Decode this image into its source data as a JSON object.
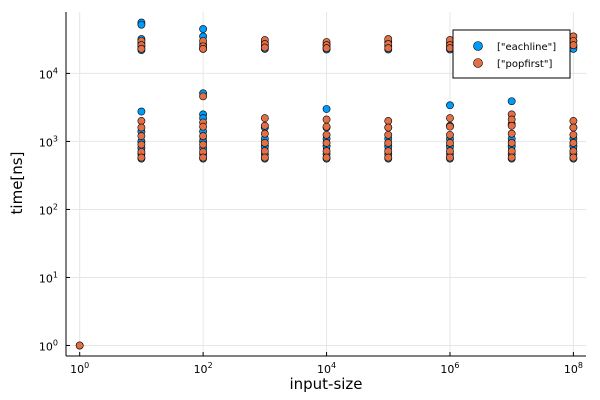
{
  "chart_data": {
    "type": "scatter",
    "title": "",
    "xlabel": "input-size",
    "ylabel": "time[ns]",
    "xscale": "log",
    "yscale": "log",
    "xlim": [
      0.6,
      160000000
    ],
    "ylim": [
      0.7,
      80000
    ],
    "grid": true,
    "legend_position": "top-right",
    "x_ticks": [
      {
        "base": "10",
        "exp": "0",
        "value": 1
      },
      {
        "base": "10",
        "exp": "2",
        "value": 100
      },
      {
        "base": "10",
        "exp": "4",
        "value": 10000
      },
      {
        "base": "10",
        "exp": "6",
        "value": 1000000
      },
      {
        "base": "10",
        "exp": "8",
        "value": 100000000
      }
    ],
    "y_ticks": [
      {
        "base": "10",
        "exp": "0",
        "value": 1
      },
      {
        "base": "10",
        "exp": "1",
        "value": 10
      },
      {
        "base": "10",
        "exp": "2",
        "value": 100
      },
      {
        "base": "10",
        "exp": "3",
        "value": 1000
      },
      {
        "base": "10",
        "exp": "4",
        "value": 10000
      }
    ],
    "series": [
      {
        "name": "[\"eachline\"]",
        "color": "#009af9",
        "points": [
          {
            "x": 1,
            "y": 1
          },
          {
            "x": 10,
            "y": 56000
          },
          {
            "x": 10,
            "y": 52000
          },
          {
            "x": 10,
            "y": 32000
          },
          {
            "x": 10,
            "y": 28000
          },
          {
            "x": 10,
            "y": 25000
          },
          {
            "x": 10,
            "y": 22000
          },
          {
            "x": 10,
            "y": 2750
          },
          {
            "x": 10,
            "y": 1400
          },
          {
            "x": 10,
            "y": 1000
          },
          {
            "x": 10,
            "y": 800
          },
          {
            "x": 10,
            "y": 650
          },
          {
            "x": 10,
            "y": 560
          },
          {
            "x": 100,
            "y": 45000
          },
          {
            "x": 100,
            "y": 35000
          },
          {
            "x": 100,
            "y": 27000
          },
          {
            "x": 100,
            "y": 23000
          },
          {
            "x": 100,
            "y": 5100
          },
          {
            "x": 100,
            "y": 2500
          },
          {
            "x": 100,
            "y": 2200
          },
          {
            "x": 100,
            "y": 1400
          },
          {
            "x": 100,
            "y": 1000
          },
          {
            "x": 100,
            "y": 800
          },
          {
            "x": 100,
            "y": 650
          },
          {
            "x": 100,
            "y": 560
          },
          {
            "x": 1000,
            "y": 28000
          },
          {
            "x": 1000,
            "y": 25000
          },
          {
            "x": 1000,
            "y": 23000
          },
          {
            "x": 1000,
            "y": 1600
          },
          {
            "x": 1000,
            "y": 1100
          },
          {
            "x": 1000,
            "y": 850
          },
          {
            "x": 1000,
            "y": 650
          },
          {
            "x": 1000,
            "y": 560
          },
          {
            "x": 10000,
            "y": 27000
          },
          {
            "x": 10000,
            "y": 24000
          },
          {
            "x": 10000,
            "y": 22500
          },
          {
            "x": 10000,
            "y": 3000
          },
          {
            "x": 10000,
            "y": 1600
          },
          {
            "x": 10000,
            "y": 1100
          },
          {
            "x": 10000,
            "y": 850
          },
          {
            "x": 10000,
            "y": 650
          },
          {
            "x": 10000,
            "y": 560
          },
          {
            "x": 100000,
            "y": 29000
          },
          {
            "x": 100000,
            "y": 25000
          },
          {
            "x": 100000,
            "y": 22500
          },
          {
            "x": 100000,
            "y": 1600
          },
          {
            "x": 100000,
            "y": 1100
          },
          {
            "x": 100000,
            "y": 850
          },
          {
            "x": 100000,
            "y": 650
          },
          {
            "x": 100000,
            "y": 560
          },
          {
            "x": 1000000,
            "y": 28000
          },
          {
            "x": 1000000,
            "y": 24000
          },
          {
            "x": 1000000,
            "y": 22500
          },
          {
            "x": 1000000,
            "y": 3400
          },
          {
            "x": 1000000,
            "y": 1700
          },
          {
            "x": 1000000,
            "y": 1100
          },
          {
            "x": 1000000,
            "y": 850
          },
          {
            "x": 1000000,
            "y": 650
          },
          {
            "x": 1000000,
            "y": 560
          },
          {
            "x": 10000000,
            "y": 38000
          },
          {
            "x": 10000000,
            "y": 27000
          },
          {
            "x": 10000000,
            "y": 23000
          },
          {
            "x": 10000000,
            "y": 3900
          },
          {
            "x": 10000000,
            "y": 1800
          },
          {
            "x": 10000000,
            "y": 1100
          },
          {
            "x": 10000000,
            "y": 850
          },
          {
            "x": 10000000,
            "y": 650
          },
          {
            "x": 10000000,
            "y": 560
          },
          {
            "x": 100000000,
            "y": 30000
          },
          {
            "x": 100000000,
            "y": 25000
          },
          {
            "x": 100000000,
            "y": 23000
          },
          {
            "x": 100000000,
            "y": 1600
          },
          {
            "x": 100000000,
            "y": 1100
          },
          {
            "x": 100000000,
            "y": 850
          },
          {
            "x": 100000000,
            "y": 650
          },
          {
            "x": 100000000,
            "y": 560
          }
        ]
      },
      {
        "name": "[\"popfirst\"]",
        "color": "#e26f46",
        "points": [
          {
            "x": 1,
            "y": 1
          },
          {
            "x": 10,
            "y": 30000
          },
          {
            "x": 10,
            "y": 26000
          },
          {
            "x": 10,
            "y": 23000
          },
          {
            "x": 10,
            "y": 2000
          },
          {
            "x": 10,
            "y": 1600
          },
          {
            "x": 10,
            "y": 1200
          },
          {
            "x": 10,
            "y": 900
          },
          {
            "x": 10,
            "y": 700
          },
          {
            "x": 10,
            "y": 580
          },
          {
            "x": 100,
            "y": 30000
          },
          {
            "x": 100,
            "y": 25000
          },
          {
            "x": 100,
            "y": 23000
          },
          {
            "x": 100,
            "y": 4600
          },
          {
            "x": 100,
            "y": 1900
          },
          {
            "x": 100,
            "y": 1650
          },
          {
            "x": 100,
            "y": 1200
          },
          {
            "x": 100,
            "y": 900
          },
          {
            "x": 100,
            "y": 700
          },
          {
            "x": 100,
            "y": 580
          },
          {
            "x": 1000,
            "y": 31000
          },
          {
            "x": 1000,
            "y": 27000
          },
          {
            "x": 1000,
            "y": 24000
          },
          {
            "x": 1000,
            "y": 2200
          },
          {
            "x": 1000,
            "y": 1700
          },
          {
            "x": 1000,
            "y": 1300
          },
          {
            "x": 1000,
            "y": 950
          },
          {
            "x": 1000,
            "y": 720
          },
          {
            "x": 1000,
            "y": 580
          },
          {
            "x": 10000,
            "y": 29000
          },
          {
            "x": 10000,
            "y": 26000
          },
          {
            "x": 10000,
            "y": 23500
          },
          {
            "x": 10000,
            "y": 2100
          },
          {
            "x": 10000,
            "y": 1650
          },
          {
            "x": 10000,
            "y": 1250
          },
          {
            "x": 10000,
            "y": 950
          },
          {
            "x": 10000,
            "y": 720
          },
          {
            "x": 10000,
            "y": 580
          },
          {
            "x": 100000,
            "y": 32000
          },
          {
            "x": 100000,
            "y": 27000
          },
          {
            "x": 100000,
            "y": 23500
          },
          {
            "x": 100000,
            "y": 2000
          },
          {
            "x": 100000,
            "y": 1600
          },
          {
            "x": 100000,
            "y": 1250
          },
          {
            "x": 100000,
            "y": 950
          },
          {
            "x": 100000,
            "y": 720
          },
          {
            "x": 100000,
            "y": 580
          },
          {
            "x": 1000000,
            "y": 31000
          },
          {
            "x": 1000000,
            "y": 26000
          },
          {
            "x": 1000000,
            "y": 23500
          },
          {
            "x": 1000000,
            "y": 2200
          },
          {
            "x": 1000000,
            "y": 1650
          },
          {
            "x": 1000000,
            "y": 1250
          },
          {
            "x": 1000000,
            "y": 950
          },
          {
            "x": 1000000,
            "y": 720
          },
          {
            "x": 1000000,
            "y": 580
          },
          {
            "x": 10000000,
            "y": 33000
          },
          {
            "x": 10000000,
            "y": 27000
          },
          {
            "x": 10000000,
            "y": 23500
          },
          {
            "x": 10000000,
            "y": 2500
          },
          {
            "x": 10000000,
            "y": 2100
          },
          {
            "x": 10000000,
            "y": 1700
          },
          {
            "x": 10000000,
            "y": 1300
          },
          {
            "x": 10000000,
            "y": 950
          },
          {
            "x": 10000000,
            "y": 720
          },
          {
            "x": 10000000,
            "y": 580
          },
          {
            "x": 100000000,
            "y": 35000
          },
          {
            "x": 100000000,
            "y": 30000
          },
          {
            "x": 100000000,
            "y": 26000
          },
          {
            "x": 100000000,
            "y": 2000
          },
          {
            "x": 100000000,
            "y": 1600
          },
          {
            "x": 100000000,
            "y": 1250
          },
          {
            "x": 100000000,
            "y": 950
          },
          {
            "x": 100000000,
            "y": 720
          },
          {
            "x": 100000000,
            "y": 580
          }
        ]
      }
    ],
    "dense_bands": [
      {
        "x": 10,
        "y_range": [
          540,
          1150
        ]
      },
      {
        "x": 100,
        "y_range": [
          540,
          1300
        ]
      },
      {
        "x": 1000,
        "y_range": [
          540,
          1200
        ]
      },
      {
        "x": 10000,
        "y_range": [
          540,
          1150
        ]
      },
      {
        "x": 100000,
        "y_range": [
          540,
          1100
        ]
      },
      {
        "x": 1000000,
        "y_range": [
          540,
          1150
        ]
      },
      {
        "x": 10000000,
        "y_range": [
          540,
          1200
        ]
      },
      {
        "x": 100000000,
        "y_range": [
          540,
          1100
        ]
      }
    ]
  }
}
